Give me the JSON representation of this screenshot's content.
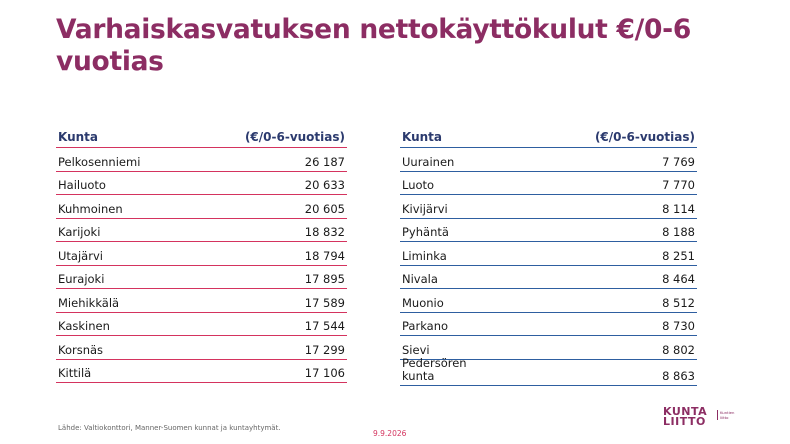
{
  "title": "Varhaiskasvatuksen nettokäyttökulut €/0-6 vuotias",
  "left_table": {
    "header": {
      "col1": "Kunta",
      "col2": "(€/0-6-vuotias)"
    },
    "rows": [
      {
        "name": "Pelkosenniemi",
        "value": "26 187"
      },
      {
        "name": "Hailuoto",
        "value": "20 633"
      },
      {
        "name": "Kuhmoinen",
        "value": "20 605"
      },
      {
        "name": "Karijoki",
        "value": "18 832"
      },
      {
        "name": "Utajärvi",
        "value": "18 794"
      },
      {
        "name": "Eurajoki",
        "value": "17 895"
      },
      {
        "name": "Miehikkälä",
        "value": "17 589"
      },
      {
        "name": "Kaskinen",
        "value": "17 544"
      },
      {
        "name": "Korsnäs",
        "value": "17 299"
      },
      {
        "name": "Kittilä",
        "value": "17 106"
      }
    ]
  },
  "right_table": {
    "header": {
      "col1": "Kunta",
      "col2": "(€/0-6-vuotias)"
    },
    "rows": [
      {
        "name": "Uurainen",
        "value": "7 769"
      },
      {
        "name": "Luoto",
        "value": "7 770"
      },
      {
        "name": "Kivijärvi",
        "value": "8 114"
      },
      {
        "name": "Pyhäntä",
        "value": "8 188"
      },
      {
        "name": "Liminka",
        "value": "8 251"
      },
      {
        "name": "Nivala",
        "value": "8 464"
      },
      {
        "name": "Muonio",
        "value": "8 512"
      },
      {
        "name": "Parkano",
        "value": "8 730"
      },
      {
        "name": "Sievi",
        "value": "8 802"
      },
      {
        "name": "Pedersören\nkunta",
        "value": "8 863"
      }
    ]
  },
  "footer": {
    "source": "Lähde: Valtiokonttori, Manner-Suomen kunnat ja kuntayhtymät.",
    "date": "9.9.2026"
  },
  "logo": {
    "line1": "KUNTA",
    "line2": "LIITTO",
    "tagline1": "Kuntien",
    "tagline2": "liitto"
  }
}
